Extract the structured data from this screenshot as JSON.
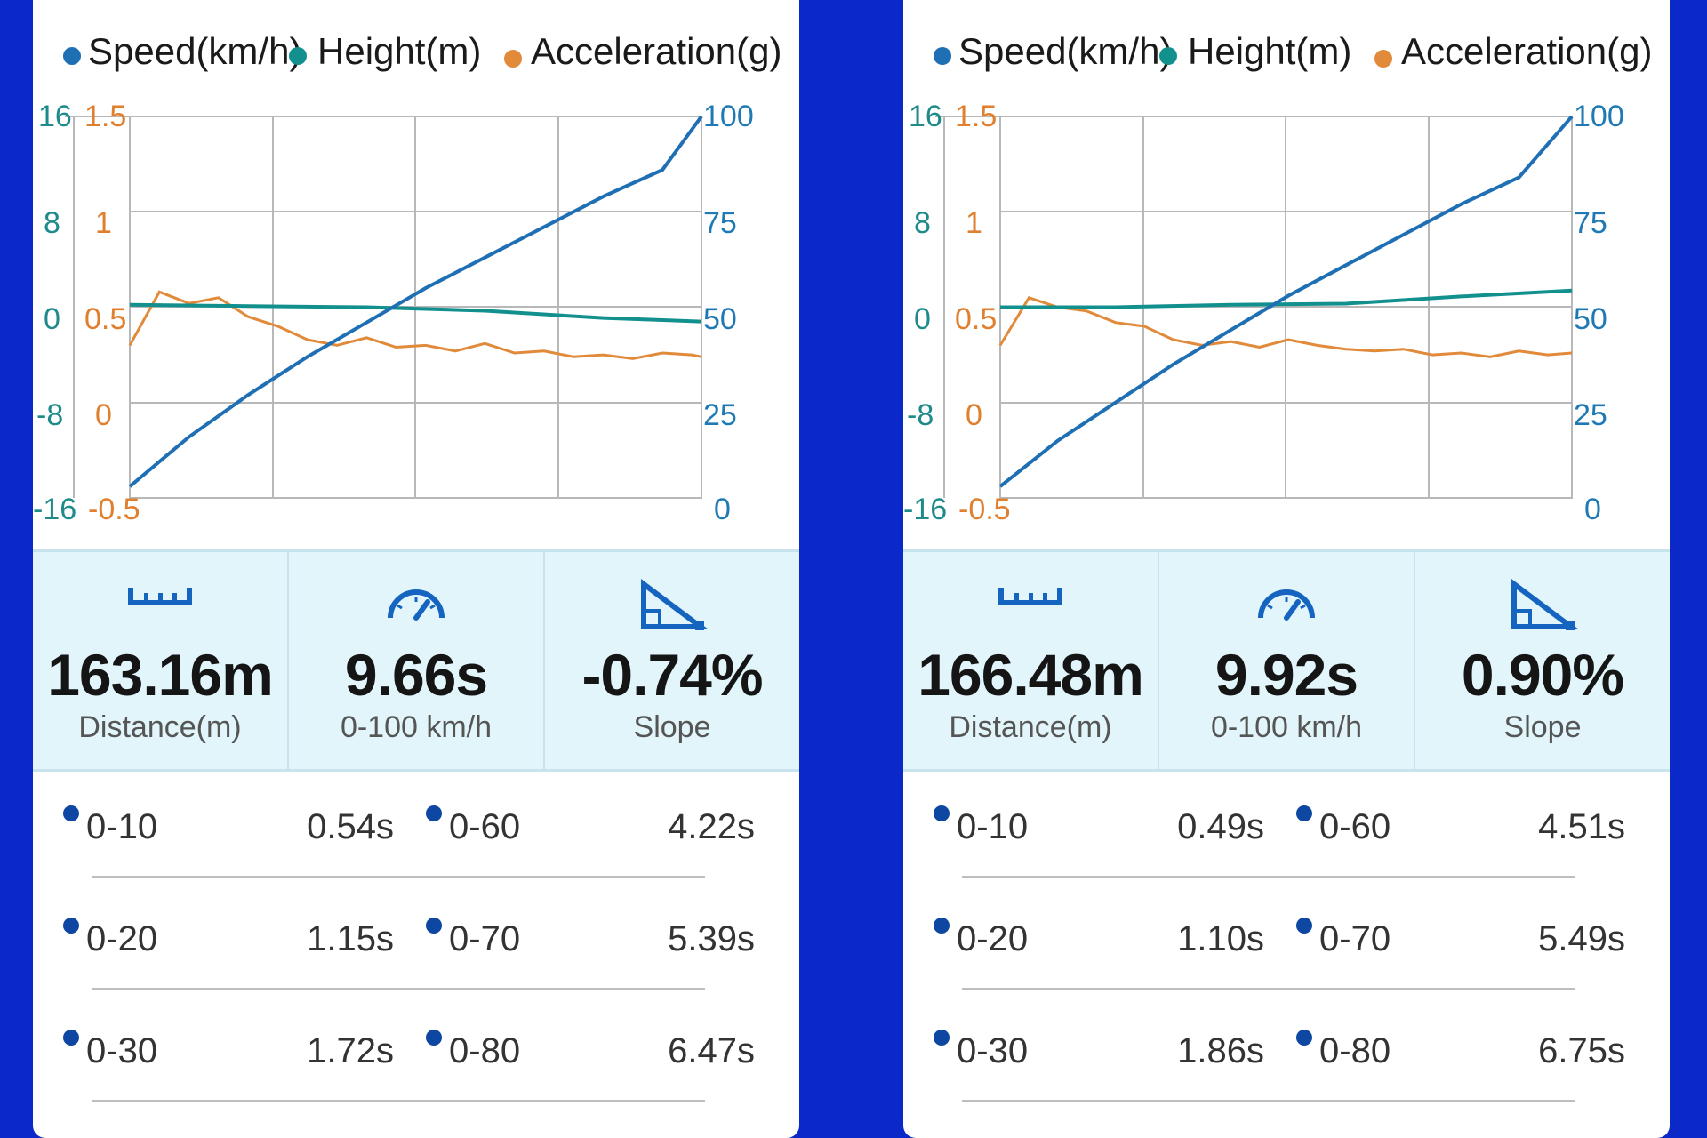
{
  "legend": {
    "speed": "Speed(km/h)",
    "height": "Height(m)",
    "acceleration": "Acceleration(g)"
  },
  "colors": {
    "background": "#0b28c9",
    "speed": "#1f6fb4",
    "height": "#12908e",
    "acceleration": "#e08a3a",
    "stats_bg": "#e1f5fb",
    "icon": "#1565c0"
  },
  "axes": {
    "height_ticks": [
      "16",
      "8",
      "0",
      "-8",
      "-16"
    ],
    "accel_ticks": [
      "1.5",
      "1",
      "0.5",
      "0",
      "-0.5"
    ],
    "speed_ticks": [
      "100",
      "75",
      "50",
      "25",
      "0"
    ]
  },
  "icons": {
    "distance": "ruler-icon",
    "time": "speedometer-icon",
    "slope": "slope-icon"
  },
  "runs": [
    {
      "distance_value": "163.16m",
      "distance_label": "Distance(m)",
      "time_value": "9.66s",
      "time_label": "0-100 km/h",
      "slope_value": "-0.74%",
      "slope_label": "Slope",
      "splits": [
        {
          "label": "0-10",
          "time": "0.54s"
        },
        {
          "label": "0-60",
          "time": "4.22s"
        },
        {
          "label": "0-20",
          "time": "1.15s"
        },
        {
          "label": "0-70",
          "time": "5.39s"
        },
        {
          "label": "0-30",
          "time": "1.72s"
        },
        {
          "label": "0-80",
          "time": "6.47s"
        }
      ]
    },
    {
      "distance_value": "166.48m",
      "distance_label": "Distance(m)",
      "time_value": "9.92s",
      "time_label": "0-100 km/h",
      "slope_value": "0.90%",
      "slope_label": "Slope",
      "splits": [
        {
          "label": "0-10",
          "time": "0.49s"
        },
        {
          "label": "0-60",
          "time": "4.51s"
        },
        {
          "label": "0-20",
          "time": "1.10s"
        },
        {
          "label": "0-70",
          "time": "5.49s"
        },
        {
          "label": "0-30",
          "time": "1.86s"
        },
        {
          "label": "0-80",
          "time": "6.75s"
        }
      ]
    }
  ],
  "chart_data": [
    {
      "type": "line",
      "x_label": "",
      "series": [
        {
          "name": "Speed(km/h)",
          "axis": "right",
          "ylim": [
            0,
            100
          ],
          "x": [
            0,
            1,
            2,
            3,
            4,
            5,
            6,
            7,
            8,
            9,
            9.66
          ],
          "values": [
            3,
            16,
            27,
            37,
            46,
            55,
            63,
            71,
            79,
            86,
            100
          ]
        },
        {
          "name": "Height(m)",
          "axis": "left",
          "ylim": [
            -16,
            16
          ],
          "x": [
            0,
            2,
            4,
            6,
            8,
            9.66
          ],
          "values": [
            0.2,
            0.1,
            0,
            -0.3,
            -0.9,
            -1.2
          ]
        },
        {
          "name": "Acceleration(g)",
          "axis": "left-inner",
          "ylim": [
            -0.5,
            1.5
          ],
          "x": [
            0,
            0.5,
            1,
            1.5,
            2,
            2.5,
            3,
            3.5,
            4,
            4.5,
            5,
            5.5,
            6,
            6.5,
            7,
            7.5,
            8,
            8.5,
            9,
            9.5,
            9.66
          ],
          "values": [
            0.3,
            0.58,
            0.52,
            0.55,
            0.45,
            0.4,
            0.33,
            0.3,
            0.34,
            0.29,
            0.3,
            0.27,
            0.31,
            0.26,
            0.27,
            0.24,
            0.25,
            0.23,
            0.26,
            0.25,
            0.24
          ]
        }
      ]
    },
    {
      "type": "line",
      "x_label": "",
      "series": [
        {
          "name": "Speed(km/h)",
          "axis": "right",
          "ylim": [
            0,
            100
          ],
          "x": [
            0,
            1,
            2,
            3,
            4,
            5,
            6,
            7,
            8,
            9,
            9.92
          ],
          "values": [
            3,
            15,
            25,
            35,
            44,
            53,
            61,
            69,
            77,
            84,
            100
          ]
        },
        {
          "name": "Height(m)",
          "axis": "left",
          "ylim": [
            -16,
            16
          ],
          "x": [
            0,
            2,
            4,
            6,
            8,
            9.92
          ],
          "values": [
            0,
            0,
            0.2,
            0.3,
            0.9,
            1.4
          ]
        },
        {
          "name": "Acceleration(g)",
          "axis": "left-inner",
          "ylim": [
            -0.5,
            1.5
          ],
          "x": [
            0,
            0.5,
            1,
            1.5,
            2,
            2.5,
            3,
            3.5,
            4,
            4.5,
            5,
            5.5,
            6,
            6.5,
            7,
            7.5,
            8,
            8.5,
            9,
            9.5,
            9.92
          ],
          "values": [
            0.3,
            0.55,
            0.5,
            0.48,
            0.42,
            0.4,
            0.33,
            0.3,
            0.32,
            0.29,
            0.33,
            0.3,
            0.28,
            0.27,
            0.28,
            0.25,
            0.26,
            0.24,
            0.27,
            0.25,
            0.26
          ]
        }
      ]
    }
  ]
}
